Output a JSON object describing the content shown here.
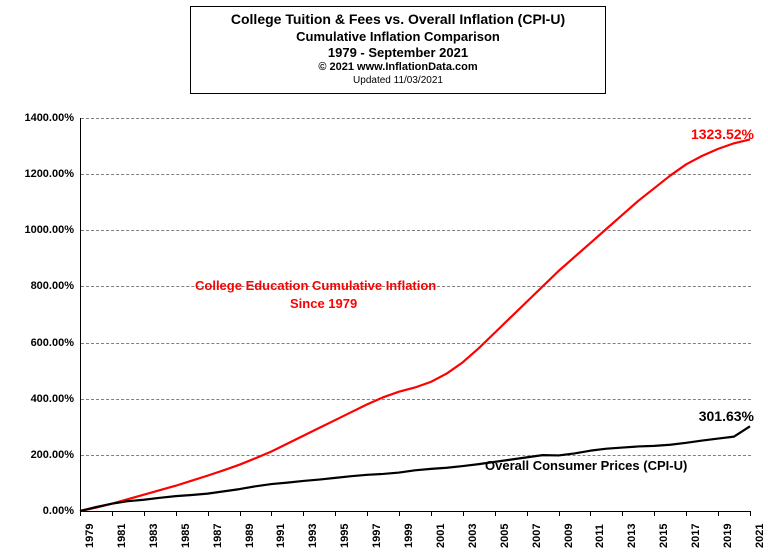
{
  "title": {
    "line1": "College  Tuition & Fees vs. Overall  Inflation (CPI-U)",
    "line2": "Cumulative Inflation Comparison",
    "line3": "1979 - September 2021",
    "line4": "© 2021 www.InflationData.com",
    "line5": "Updated  11/03/2021"
  },
  "chart": {
    "type": "line",
    "background_color": "#ffffff",
    "grid_color": "#808080",
    "axis_color": "#000000",
    "font_family": "Arial",
    "y": {
      "min": 0,
      "max": 1400,
      "step": 200,
      "labels": [
        "0.00%",
        "200.00%",
        "400.00%",
        "600.00%",
        "800.00%",
        "1000.00%",
        "1200.00%",
        "1400.00%"
      ],
      "label_fontsize": 11
    },
    "x": {
      "years": [
        1979,
        1981,
        1983,
        1985,
        1987,
        1989,
        1991,
        1993,
        1995,
        1997,
        1999,
        2001,
        2003,
        2005,
        2007,
        2009,
        2011,
        2013,
        2015,
        2017,
        2019,
        2021
      ],
      "label_fontsize": 11
    },
    "series": [
      {
        "name": "College Education Cumulative Inflation",
        "color": "#ff0000",
        "line_width": 2.2,
        "data": [
          [
            1979,
            0
          ],
          [
            1980,
            12
          ],
          [
            1981,
            26
          ],
          [
            1982,
            42
          ],
          [
            1983,
            58
          ],
          [
            1984,
            74
          ],
          [
            1985,
            90
          ],
          [
            1986,
            108
          ],
          [
            1987,
            126
          ],
          [
            1988,
            145
          ],
          [
            1989,
            165
          ],
          [
            1990,
            188
          ],
          [
            1991,
            212
          ],
          [
            1992,
            240
          ],
          [
            1993,
            268
          ],
          [
            1994,
            296
          ],
          [
            1995,
            324
          ],
          [
            1996,
            352
          ],
          [
            1997,
            380
          ],
          [
            1998,
            405
          ],
          [
            1999,
            425
          ],
          [
            2000,
            440
          ],
          [
            2001,
            460
          ],
          [
            2002,
            490
          ],
          [
            2003,
            530
          ],
          [
            2004,
            580
          ],
          [
            2005,
            635
          ],
          [
            2006,
            690
          ],
          [
            2007,
            745
          ],
          [
            2008,
            800
          ],
          [
            2009,
            855
          ],
          [
            2010,
            905
          ],
          [
            2011,
            955
          ],
          [
            2012,
            1005
          ],
          [
            2013,
            1055
          ],
          [
            2014,
            1105
          ],
          [
            2015,
            1150
          ],
          [
            2016,
            1195
          ],
          [
            2017,
            1235
          ],
          [
            2018,
            1265
          ],
          [
            2019,
            1290
          ],
          [
            2020,
            1310
          ],
          [
            2021,
            1323.52
          ]
        ]
      },
      {
        "name": "Overall Consumer Prices (CPI-U)",
        "color": "#000000",
        "line_width": 2.2,
        "data": [
          [
            1979,
            0
          ],
          [
            1980,
            14
          ],
          [
            1981,
            26
          ],
          [
            1982,
            35
          ],
          [
            1983,
            40
          ],
          [
            1984,
            47
          ],
          [
            1985,
            53
          ],
          [
            1986,
            57
          ],
          [
            1987,
            62
          ],
          [
            1988,
            70
          ],
          [
            1989,
            78
          ],
          [
            1990,
            88
          ],
          [
            1991,
            96
          ],
          [
            1992,
            101
          ],
          [
            1993,
            107
          ],
          [
            1994,
            112
          ],
          [
            1995,
            118
          ],
          [
            1996,
            124
          ],
          [
            1997,
            129
          ],
          [
            1998,
            132
          ],
          [
            1999,
            137
          ],
          [
            2000,
            145
          ],
          [
            2001,
            150
          ],
          [
            2002,
            154
          ],
          [
            2003,
            160
          ],
          [
            2004,
            167
          ],
          [
            2005,
            175
          ],
          [
            2006,
            183
          ],
          [
            2007,
            191
          ],
          [
            2008,
            199
          ],
          [
            2009,
            198
          ],
          [
            2010,
            205
          ],
          [
            2011,
            215
          ],
          [
            2012,
            222
          ],
          [
            2013,
            226
          ],
          [
            2014,
            230
          ],
          [
            2015,
            232
          ],
          [
            2016,
            236
          ],
          [
            2017,
            243
          ],
          [
            2018,
            251
          ],
          [
            2019,
            258
          ],
          [
            2020,
            265
          ],
          [
            2021,
            301.63
          ]
        ]
      }
    ],
    "annotations": {
      "college_label_line1": "College Education Cumulative Inflation",
      "college_label_line2": "Since 1979",
      "college_label_color": "#ff0000",
      "college_label_fontsize": 13,
      "college_end_value": "1323.52%",
      "cpiu_label": "Overall Consumer Prices (CPI-U)",
      "cpiu_label_color": "#000000",
      "cpiu_label_fontsize": 13,
      "cpiu_end_value": "301.63%"
    }
  }
}
